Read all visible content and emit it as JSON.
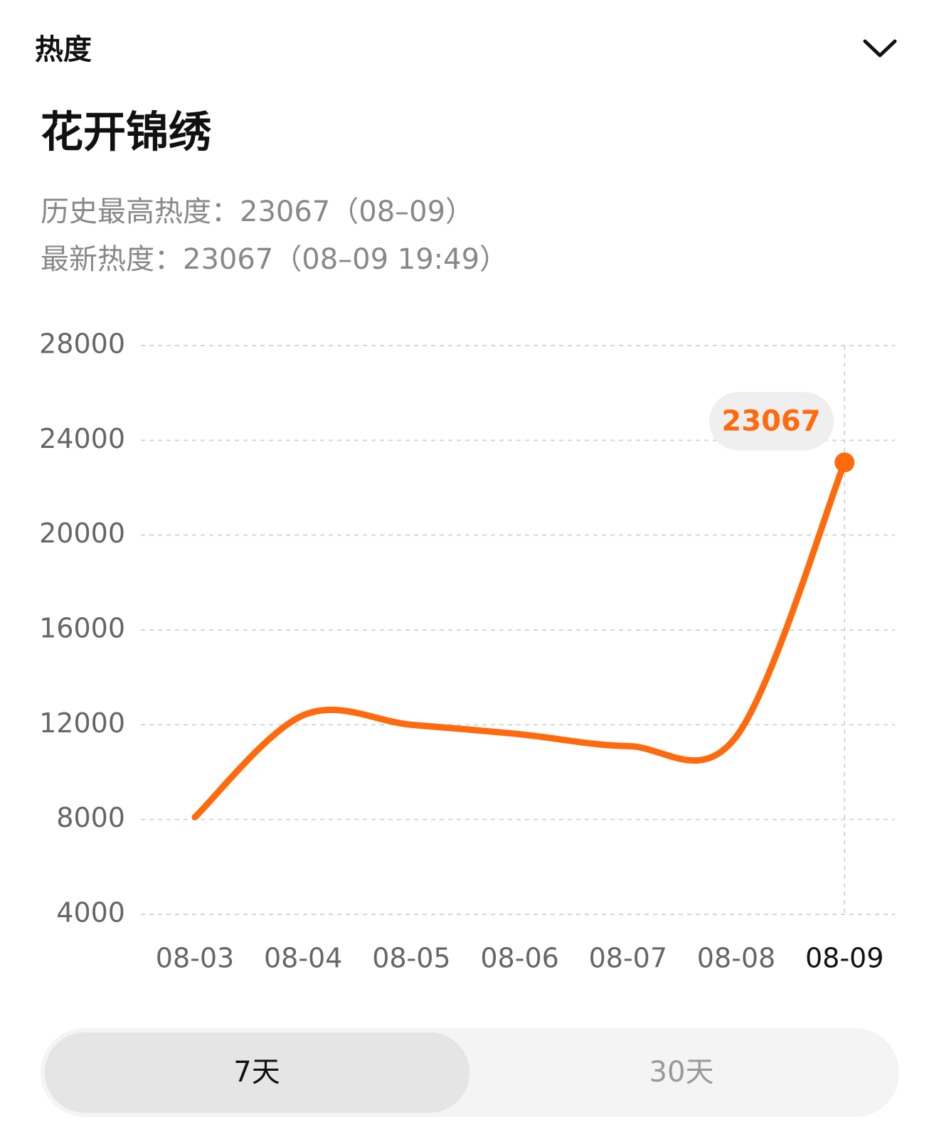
{
  "header": {
    "title": "热度"
  },
  "heading": "花开锦绣",
  "stats": [
    "历史最高热度：23067（08–09）",
    "最新热度：23067（08–09 19:49）"
  ],
  "chart_data": {
    "type": "line",
    "categories": [
      "08-03",
      "08-04",
      "08-05",
      "08-06",
      "08-07",
      "08-08",
      "08-09"
    ],
    "values": [
      8100,
      12400,
      12000,
      11600,
      11100,
      11500,
      23067
    ],
    "color": "#ff6a0d",
    "ylim": [
      4000,
      28000
    ],
    "yticks": [
      4000,
      8000,
      12000,
      16000,
      20000,
      24000,
      28000
    ],
    "grid": true
  },
  "tabs": [
    "7天",
    "30天"
  ]
}
